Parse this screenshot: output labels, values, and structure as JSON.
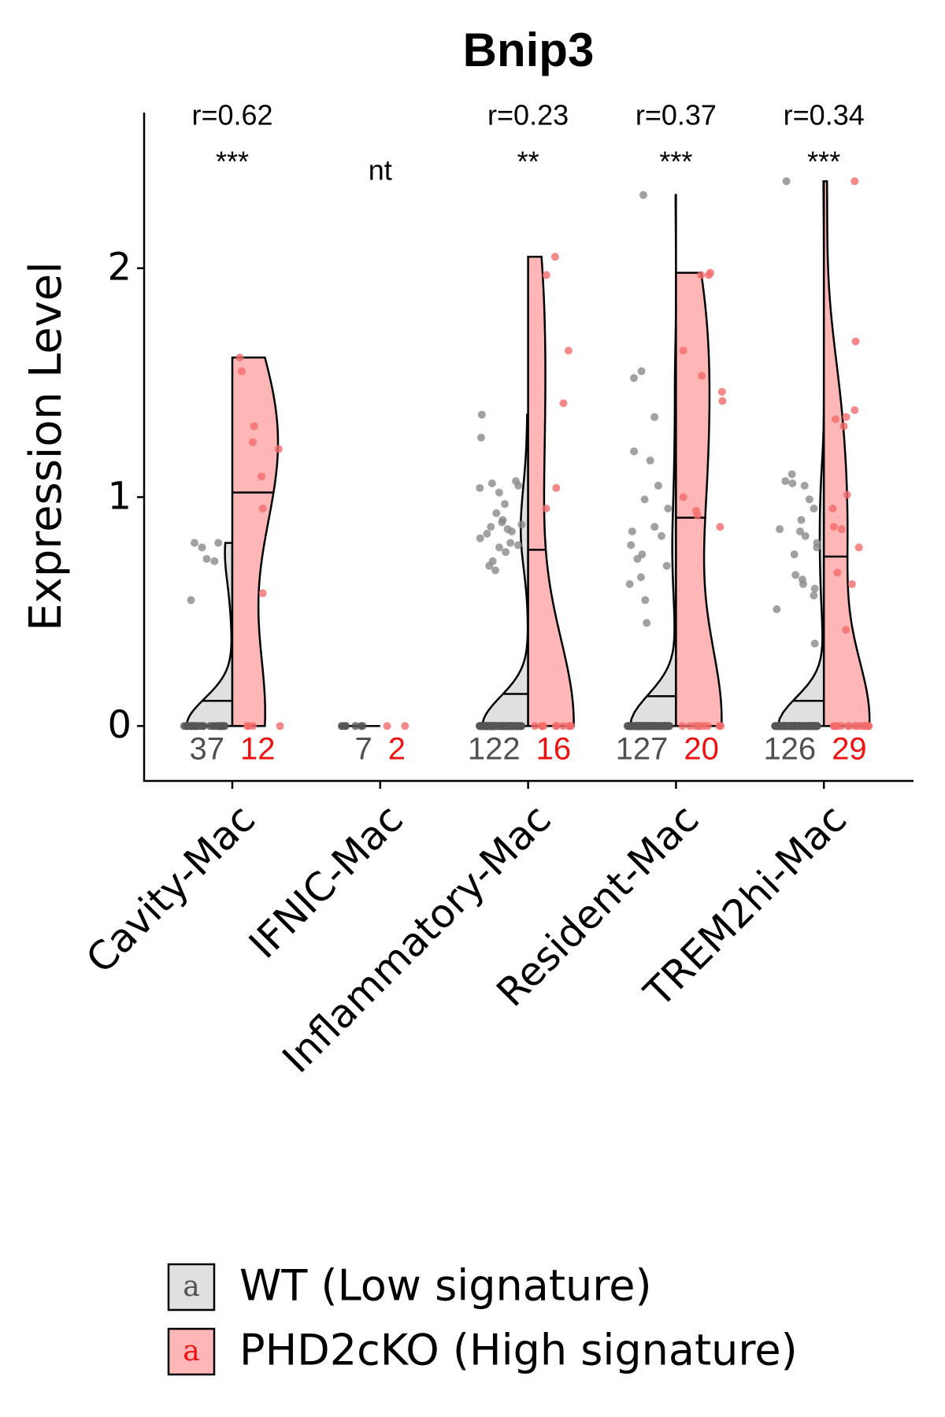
{
  "chart_data": {
    "type": "violin",
    "title": "Bnip3",
    "y_label": "Expression Level",
    "categories": [
      "Cavity-Mac",
      "IFNIC-Mac",
      "Inflammatory-Mac",
      "Resident-Mac",
      "TREM2hi-Mac"
    ],
    "ylim": [
      -0.24,
      2.68
    ],
    "yticks": [
      0,
      1,
      2
    ],
    "r_labels": [
      "r=0.62",
      null,
      "r=0.23",
      "r=0.37",
      "r=0.34"
    ],
    "significance": [
      "***",
      "nt",
      "**",
      "***",
      "***"
    ],
    "legend_key_text": "a",
    "series": [
      {
        "name": "WT (Low signature)",
        "color": "#e0e0e0",
        "point_color": "#8a8a8a",
        "count_color": "#505050",
        "n": [
          37,
          7,
          122,
          127,
          126
        ],
        "means": [
          0.11,
          0,
          0.14,
          0.13,
          0.11
        ],
        "nonzero_points": [
          [
            0.8,
            0.8,
            0.78,
            0.73,
            0.72,
            0.55
          ],
          [],
          [
            1.36,
            1.26,
            1.07,
            1.06,
            1.05,
            1.04,
            1.02,
            0.97,
            0.93,
            0.9,
            0.89,
            0.88,
            0.87,
            0.86,
            0.85,
            0.84,
            0.82,
            0.8,
            0.79,
            0.78,
            0.76,
            0.72,
            0.7,
            0.68
          ],
          [
            2.32,
            1.55,
            1.52,
            1.35,
            1.2,
            1.16,
            1.05,
            0.99,
            0.95,
            0.87,
            0.85,
            0.83,
            0.79,
            0.75,
            0.73,
            0.7,
            0.65,
            0.62,
            0.55,
            0.45
          ],
          [
            2.38,
            1.1,
            1.07,
            1.06,
            1.05,
            0.99,
            0.95,
            0.9,
            0.86,
            0.85,
            0.83,
            0.8,
            0.78,
            0.75,
            0.66,
            0.64,
            0.62,
            0.6,
            0.57,
            0.51,
            0.36
          ]
        ]
      },
      {
        "name": "PHD2cKO (High signature)",
        "color": "#ffb6b6",
        "point_color": "#f26b6b",
        "count_color": "#ee1111",
        "n": [
          12,
          2,
          16,
          20,
          29
        ],
        "means": [
          1.02,
          null,
          0.77,
          0.91,
          0.74
        ],
        "nonzero_points": [
          [
            1.61,
            1.55,
            1.31,
            1.24,
            1.21,
            1.09,
            0.95,
            0.58
          ],
          [],
          [
            2.05,
            1.97,
            1.64,
            1.41,
            1.04,
            0.95
          ],
          [
            1.98,
            1.97,
            1.97,
            1.64,
            1.53,
            1.46,
            1.42,
            1.0,
            0.94,
            0.92,
            0.87
          ],
          [
            2.38,
            1.68,
            1.38,
            1.35,
            1.34,
            1.31,
            1.01,
            0.95,
            0.87,
            0.86,
            0.78,
            0.67,
            0.62,
            0.42
          ]
        ]
      }
    ]
  }
}
